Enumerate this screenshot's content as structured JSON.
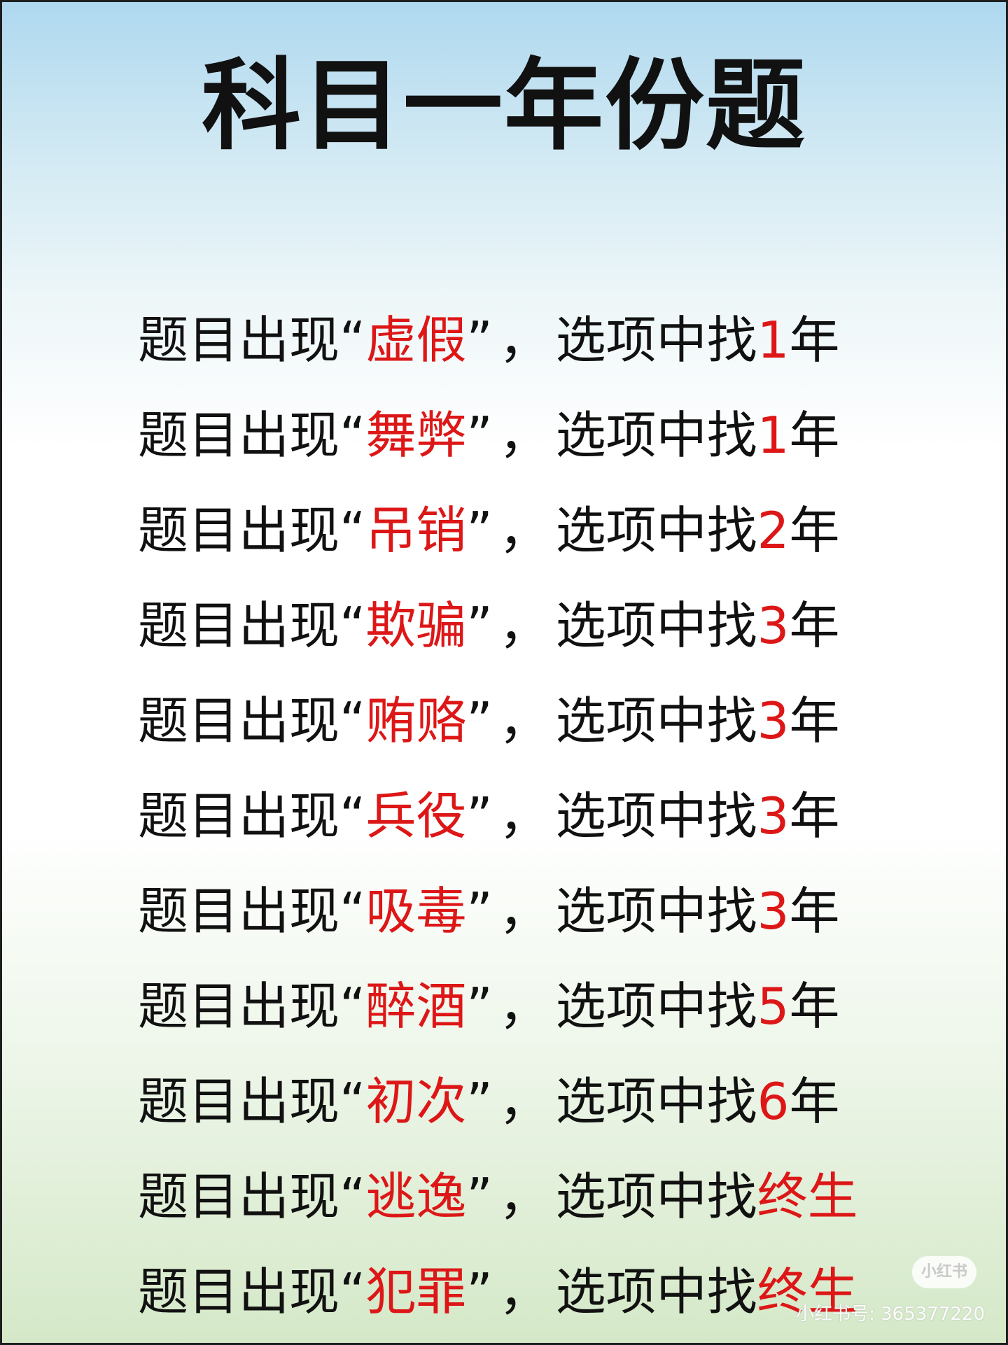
{
  "title": "科目一年份题",
  "rules": [
    {
      "prefix": "题目出现",
      "open_quote": "“",
      "keyword": "虚假",
      "close_quote": "”",
      "comma": "，",
      "middle": "选项中找",
      "answer": "1",
      "suffix": "年"
    },
    {
      "prefix": "题目出现",
      "open_quote": "“",
      "keyword": "舞弊",
      "close_quote": "”",
      "comma": "，",
      "middle": "选项中找",
      "answer": "1",
      "suffix": "年"
    },
    {
      "prefix": "题目出现",
      "open_quote": "“",
      "keyword": "吊销",
      "close_quote": "”",
      "comma": "，",
      "middle": "选项中找",
      "answer": "2",
      "suffix": "年"
    },
    {
      "prefix": "题目出现",
      "open_quote": "“",
      "keyword": "欺骗",
      "close_quote": "”",
      "comma": "，",
      "middle": "选项中找",
      "answer": "3",
      "suffix": "年"
    },
    {
      "prefix": "题目出现",
      "open_quote": "“",
      "keyword": "贿赂",
      "close_quote": "”",
      "comma": "，",
      "middle": "选项中找",
      "answer": "3",
      "suffix": "年"
    },
    {
      "prefix": "题目出现",
      "open_quote": "“",
      "keyword": "兵役",
      "close_quote": "”",
      "comma": "，",
      "middle": "选项中找",
      "answer": "3",
      "suffix": "年"
    },
    {
      "prefix": "题目出现",
      "open_quote": "“",
      "keyword": "吸毒",
      "close_quote": "”",
      "comma": "，",
      "middle": "选项中找",
      "answer": "3",
      "suffix": "年"
    },
    {
      "prefix": "题目出现",
      "open_quote": "“",
      "keyword": "醉酒",
      "close_quote": "”",
      "comma": "，",
      "middle": "选项中找",
      "answer": "5",
      "suffix": "年"
    },
    {
      "prefix": "题目出现",
      "open_quote": "“",
      "keyword": "初次",
      "close_quote": "”",
      "comma": "，",
      "middle": "选项中找",
      "answer": "6",
      "suffix": "年"
    },
    {
      "prefix": "题目出现",
      "open_quote": "“",
      "keyword": "逃逸",
      "close_quote": "”",
      "comma": "，",
      "middle": "选项中找",
      "answer": "终生",
      "suffix": ""
    },
    {
      "prefix": "题目出现",
      "open_quote": "“",
      "keyword": "犯罪",
      "close_quote": "”",
      "comma": "，",
      "middle": "选项中找",
      "answer": "终生",
      "suffix": ""
    }
  ],
  "watermark": {
    "badge": "小红书",
    "id_text": "小红书号: 365377220"
  },
  "colors": {
    "keyword": "#dd1717",
    "text": "#111111"
  }
}
